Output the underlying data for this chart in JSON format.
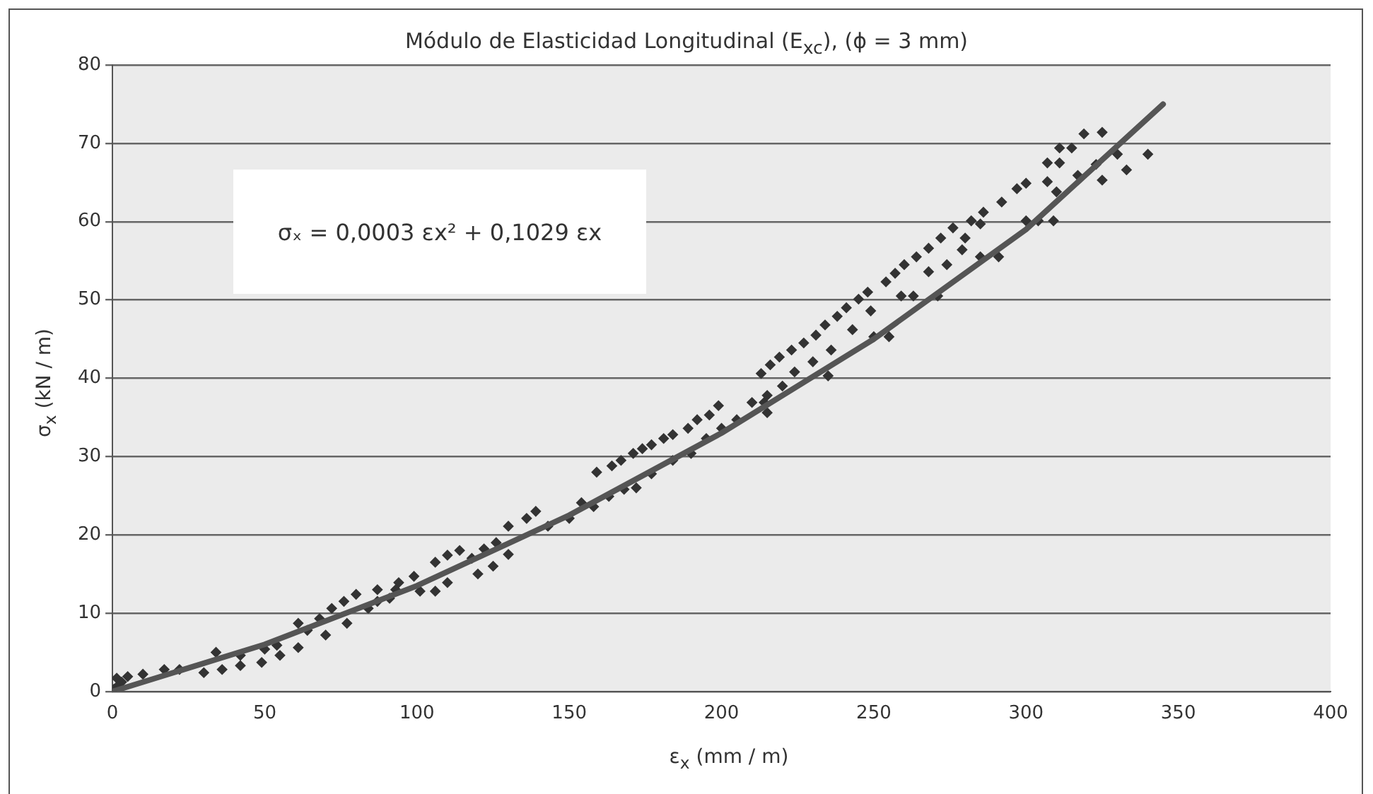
{
  "chart_data": {
    "type": "scatter",
    "title": "Módulo de Elasticidad Longitudinal (E$_{xc}$), (ϕ = 3 mm)",
    "xlabel": "ε$_{x}$ (mm / m)",
    "ylabel": "σ$_{x}$ (kN / m)",
    "annotations": [
      "σₓ = 0,0003 εx² + 0,1029 εx"
    ],
    "xlim": [
      0,
      400
    ],
    "xticks": [
      0,
      50,
      100,
      150,
      200,
      250,
      300,
      350,
      400
    ],
    "ylim": [
      0,
      80
    ],
    "yticks": [
      0,
      10,
      20,
      30,
      40,
      50,
      60,
      70,
      80
    ],
    "grid": "y",
    "legend": false,
    "marker": "diamond",
    "series": [
      {
        "color": "#333333",
        "x": [
          0.5,
          2,
          3,
          1.4,
          5,
          10,
          17,
          22,
          30,
          36,
          42,
          49,
          55,
          61,
          64,
          70,
          72,
          76,
          80,
          84,
          87,
          91,
          94,
          99,
          101,
          106,
          106,
          110,
          110,
          114,
          34,
          42,
          50,
          54,
          61,
          68,
          77,
          87,
          93,
          118,
          122,
          126,
          120,
          125,
          130,
          130,
          136,
          139,
          143,
          150,
          154,
          158,
          159,
          164,
          167,
          171,
          174,
          177,
          181,
          184,
          189,
          192,
          196,
          199,
          163,
          168,
          172,
          177,
          184,
          190,
          195,
          200,
          205,
          214,
          215,
          213,
          216,
          219,
          223,
          227,
          231,
          234,
          238,
          241,
          245,
          248,
          254,
          257,
          260,
          264,
          268,
          272,
          276,
          280,
          282,
          286,
          292,
          297,
          300,
          300,
          304,
          307,
          307,
          309,
          310,
          311,
          311,
          315,
          317,
          319,
          323,
          325,
          325,
          330,
          333,
          340,
          271,
          263,
          255,
          250,
          235,
          268,
          259,
          249,
          243,
          236,
          230,
          224,
          220,
          215,
          210,
          285,
          279,
          274,
          285,
          291
        ],
        "values": [
          0.3,
          0.8,
          1.2,
          1.7,
          1.9,
          2.2,
          2.8,
          2.8,
          2.4,
          2.8,
          3.3,
          3.7,
          4.6,
          5.6,
          7.8,
          7.2,
          10.6,
          11.5,
          12.4,
          10.6,
          13.0,
          11.9,
          13.9,
          14.7,
          12.8,
          12.8,
          16.5,
          17.4,
          13.9,
          18.0,
          5.0,
          4.6,
          5.4,
          5.9,
          8.7,
          9.3,
          8.7,
          11.5,
          13.0,
          17.0,
          18.2,
          19.0,
          15.0,
          16.0,
          17.5,
          21.1,
          22.1,
          23.0,
          21.1,
          22.1,
          24.1,
          23.6,
          28.0,
          28.8,
          29.5,
          30.4,
          31.0,
          31.5,
          32.3,
          32.8,
          33.6,
          34.7,
          35.3,
          36.5,
          24.9,
          25.8,
          26.0,
          27.8,
          29.5,
          30.4,
          32.3,
          33.6,
          34.7,
          36.9,
          35.6,
          40.6,
          41.7,
          42.7,
          43.6,
          44.5,
          45.5,
          46.8,
          47.9,
          49.0,
          50.1,
          51.0,
          52.3,
          53.4,
          54.5,
          55.5,
          56.6,
          57.9,
          59.2,
          57.9,
          60.1,
          61.2,
          62.5,
          64.2,
          64.9,
          60.1,
          60.1,
          65.1,
          67.5,
          60.1,
          63.8,
          67.5,
          69.4,
          69.4,
          65.9,
          71.2,
          67.3,
          71.4,
          65.3,
          68.6,
          66.6,
          68.6,
          50.5,
          50.5,
          45.3,
          45.3,
          40.3,
          53.6,
          50.5,
          48.6,
          46.2,
          43.6,
          42.1,
          40.8,
          39.0,
          37.8,
          36.9,
          59.7,
          56.4,
          54.5,
          55.5,
          55.5
        ]
      },
      {
        "type": "line",
        "color": "#555555",
        "marker": "none",
        "x": [
          0,
          50,
          100,
          150,
          200,
          250,
          300,
          345
        ],
        "values": [
          0,
          6,
          13.5,
          22.5,
          33,
          45,
          59,
          75
        ]
      }
    ]
  }
}
